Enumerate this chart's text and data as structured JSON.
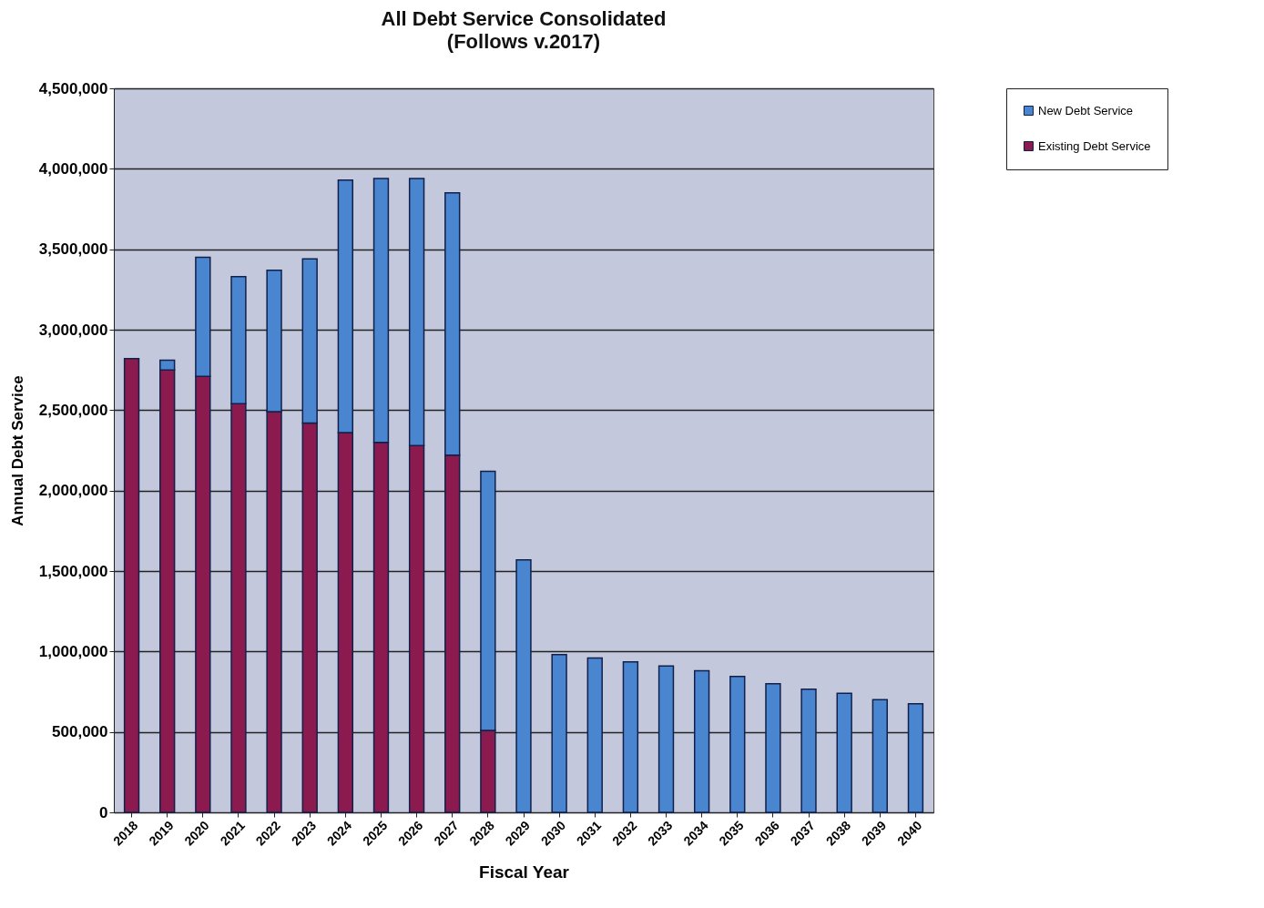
{
  "chart_data": {
    "type": "bar",
    "title": "All  Debt Service Consolidated",
    "subtitle": "(Follows v.2017)",
    "xlabel": "Fiscal Year",
    "ylabel": "Annual Debt Service",
    "categories": [
      "2018",
      "2019",
      "2020",
      "2021",
      "2022",
      "2023",
      "2024",
      "2025",
      "2026",
      "2027",
      "2028",
      "2029",
      "2030",
      "2031",
      "2032",
      "2033",
      "2034",
      "2035",
      "2036",
      "2037",
      "2038",
      "2039",
      "2040"
    ],
    "stacked": true,
    "series": [
      {
        "name": "Existing Debt Service",
        "color": "#8b1a4f",
        "values": [
          2820000,
          2750000,
          2710000,
          2540000,
          2490000,
          2420000,
          2360000,
          2300000,
          2280000,
          2220000,
          510000,
          null,
          null,
          null,
          null,
          null,
          null,
          null,
          null,
          null,
          null,
          null,
          null
        ]
      },
      {
        "name": "New Debt Service",
        "color": "#4a86d0",
        "values": [
          null,
          60000,
          740000,
          790000,
          880000,
          1020000,
          1570000,
          1640000,
          1660000,
          1630000,
          1610000,
          1570000,
          980000,
          960000,
          935000,
          910000,
          880000,
          845000,
          800000,
          765000,
          740000,
          700000,
          675000
        ]
      }
    ],
    "ylim": [
      0,
      4500000
    ],
    "yticks": [
      {
        "value": 0,
        "label": "0"
      },
      {
        "value": 500000,
        "label": "500,000"
      },
      {
        "value": 1000000,
        "label": "1,000,000"
      },
      {
        "value": 1500000,
        "label": "1,500,000"
      },
      {
        "value": 2000000,
        "label": "2,000,000"
      },
      {
        "value": 2500000,
        "label": "2,500,000"
      },
      {
        "value": 3000000,
        "label": "3,000,000"
      },
      {
        "value": 3500000,
        "label": "3,500,000"
      },
      {
        "value": 4000000,
        "label": "4,000,000"
      },
      {
        "value": 4500000,
        "label": "4,500,000"
      }
    ],
    "grid": "y",
    "legend": "right"
  }
}
